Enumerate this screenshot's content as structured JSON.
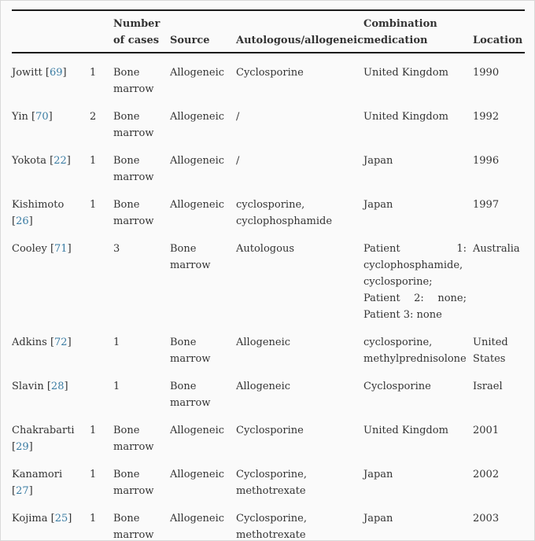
{
  "colors": {
    "background": "#fafafa",
    "frame_border": "#d9d9d9",
    "text": "#333333",
    "rule": "#1c1c1c",
    "link": "#3a7ca3"
  },
  "table": {
    "citation": {
      "open": "[",
      "close": "]"
    },
    "header": {
      "author": "",
      "spacer": "",
      "cases": "Number of cases",
      "source": "Source",
      "type": "Autologous/allogeneic",
      "medication": "Combination medication",
      "location": "Location"
    },
    "rows": [
      {
        "author": "Jowitt",
        "ref": "69",
        "c2": "1",
        "c3": "Bone marrow",
        "c4": "Allogeneic",
        "c5": "Cyclosporine",
        "c6": "United Kingdom",
        "c7": "1990"
      },
      {
        "author": "Yin",
        "ref": "70",
        "c2": "2",
        "c3": "Bone marrow",
        "c4": "Allogeneic",
        "c5": "/",
        "c6": "United Kingdom",
        "c7": "1992"
      },
      {
        "author": "Yokota",
        "ref": "22",
        "c2": "1",
        "c3": "Bone marrow",
        "c4": "Allogeneic",
        "c5": "/",
        "c6": "Japan",
        "c7": "1996"
      },
      {
        "author": "Kishimoto",
        "ref": "26",
        "c2": "1",
        "c3": "Bone marrow",
        "c4": "Allogeneic",
        "c5": "cyclosporine, cyclophosphamide",
        "c6": "Japan",
        "c7": "1997"
      },
      {
        "author": "Cooley",
        "ref": "71",
        "c2": "",
        "c3": "3",
        "c4": "Bone marrow",
        "c5": "Autologous",
        "c6_lines": [
          "Patient 1:",
          "cyclophosphamide,",
          "cyclosporine;",
          "Patient 2: none;",
          "Patient 3: none"
        ],
        "c7": "Australia"
      },
      {
        "author": "Adkins",
        "ref": "72",
        "c2": "",
        "c3": "1",
        "c4": "Bone marrow",
        "c5": "Allogeneic",
        "c6": "cyclosporine, methylprednisolone",
        "c7": "United States"
      },
      {
        "author": "Slavin",
        "ref": "28",
        "c2": "",
        "c3": "1",
        "c4": "Bone marrow",
        "c5": "Allogeneic",
        "c6": "Cyclosporine",
        "c7": "Israel"
      },
      {
        "author": "Chakrabarti",
        "ref": "29",
        "c2": "1",
        "c3": "Bone marrow",
        "c4": "Allogeneic",
        "c5": "Cyclosporine",
        "c6": "United Kingdom",
        "c7": "2001"
      },
      {
        "author": "Kanamori",
        "ref": "27",
        "c2": "1",
        "c3": "Bone marrow",
        "c4": "Allogeneic",
        "c5": "Cyclosporine, methotrexate",
        "c6": "Japan",
        "c7": "2002"
      },
      {
        "author": "Kojima",
        "ref": "25",
        "c2": "1",
        "c3": "Bone marrow",
        "c4": "Allogeneic",
        "c5": "Cyclosporine, methotrexate",
        "c6": "Japan",
        "c7": "2003"
      }
    ]
  }
}
